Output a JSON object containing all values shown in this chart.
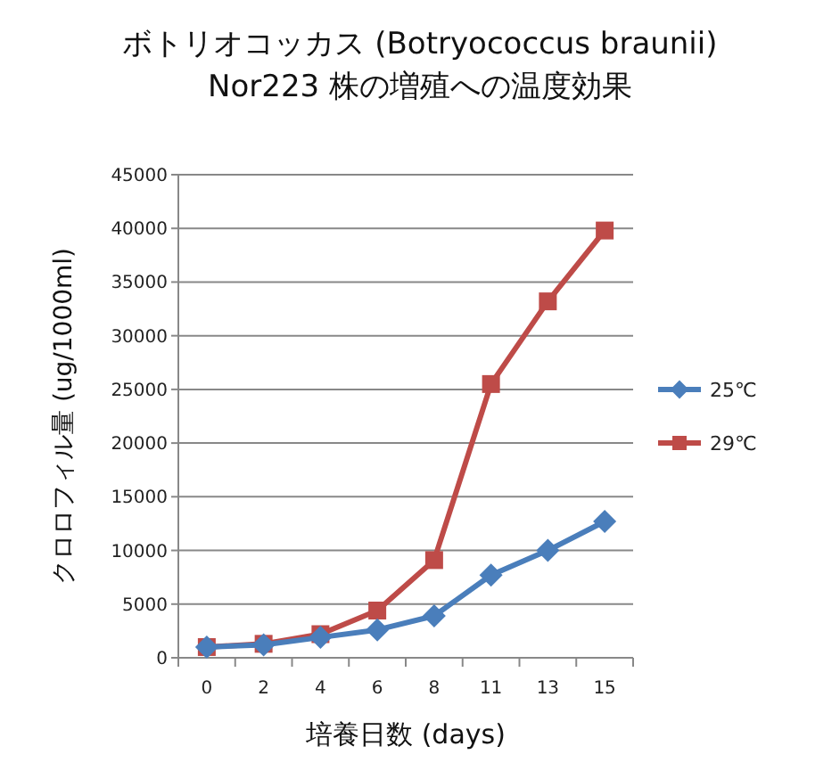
{
  "chart_data": {
    "type": "line",
    "title": "ボトリオコッカス (Botryococcus braunii)\nNor223 株の増殖への温度効果",
    "xlabel": "培養日数 (days)",
    "ylabel": "クロロフィル量 (ug/1000ml)",
    "categories": [
      "0",
      "2",
      "4",
      "6",
      "8",
      "11",
      "13",
      "15"
    ],
    "series": [
      {
        "name": "25℃",
        "color": "#4a7ebb",
        "marker": "diamond",
        "values": [
          1000,
          1200,
          1900,
          2600,
          3900,
          7700,
          10000,
          12700
        ]
      },
      {
        "name": "29℃",
        "color": "#be4b48",
        "marker": "square",
        "values": [
          1000,
          1300,
          2200,
          4400,
          9100,
          25500,
          33200,
          39800
        ]
      }
    ],
    "ylim": [
      0,
      45000
    ],
    "yticks": [
      0,
      5000,
      10000,
      15000,
      20000,
      25000,
      30000,
      35000,
      40000,
      45000
    ],
    "grid": "y",
    "legend": "right",
    "line_style": "solid"
  }
}
